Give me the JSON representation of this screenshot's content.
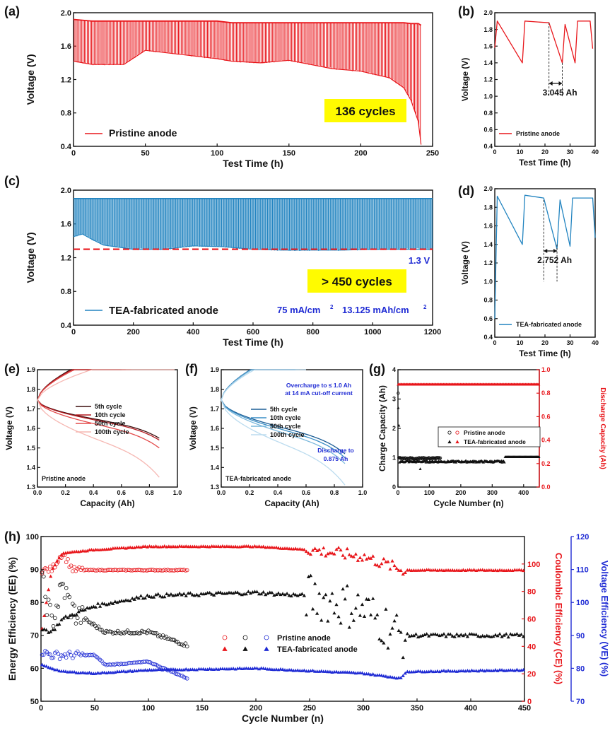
{
  "chart_data": [
    {
      "panel": "(a)",
      "type": "line",
      "xlabel": "Test Time (h)",
      "ylabel": "Voltage (V)",
      "xlim": [
        0,
        250
      ],
      "ylim": [
        0.4,
        2.0
      ],
      "xticks": [
        "0",
        "50",
        "100",
        "150",
        "200",
        "250"
      ],
      "yticks": [
        "0.4",
        "0.8",
        "1.2",
        "1.6",
        "2.0"
      ],
      "legend": "Pristine anode",
      "highlight_text": "136 cycles",
      "series": [
        {
          "name": "Pristine anode",
          "color": "#e8161b",
          "x": [
            0,
            13,
            25,
            35,
            50,
            100,
            110,
            130,
            150,
            180,
            200,
            220,
            230,
            235,
            240,
            242
          ],
          "y_charge_top": [
            1.92,
            1.9,
            1.9,
            1.9,
            1.9,
            1.9,
            1.88,
            1.88,
            1.88,
            1.88,
            1.88,
            1.88,
            1.88,
            1.87,
            1.87,
            1.85
          ],
          "y_discharge_end": [
            1.42,
            1.38,
            1.38,
            1.38,
            1.55,
            1.45,
            1.42,
            1.4,
            1.43,
            1.33,
            1.3,
            1.22,
            1.1,
            0.95,
            0.7,
            0.42
          ]
        }
      ]
    },
    {
      "panel": "(b)",
      "type": "line",
      "xlabel": "Test Time (h)",
      "ylabel": "Voltage (V)",
      "xlim": [
        0,
        40
      ],
      "ylim": [
        0.4,
        2.0
      ],
      "xticks": [
        "0",
        "10",
        "20",
        "30",
        "40"
      ],
      "yticks": [
        "0.4",
        "0.6",
        "0.8",
        "1.0",
        "1.2",
        "1.4",
        "1.6",
        "1.8",
        "2.0"
      ],
      "legend": "Pristine anode",
      "annotation": "3.045 Ah",
      "series": [
        {
          "name": "Pristine anode",
          "color": "#e8161b",
          "x": [
            0,
            1,
            11,
            12,
            21.6,
            26.9,
            28,
            32,
            33,
            38,
            39
          ],
          "y": [
            1.58,
            1.9,
            1.4,
            1.9,
            1.88,
            1.4,
            1.86,
            1.4,
            1.9,
            1.9,
            1.57
          ]
        }
      ]
    },
    {
      "panel": "(c)",
      "type": "line",
      "xlabel": "Test Time (h)",
      "ylabel": "Voltage (V)",
      "xlim": [
        0,
        1200
      ],
      "ylim": [
        0.4,
        2.0
      ],
      "xticks": [
        "0",
        "200",
        "400",
        "600",
        "800",
        "1000",
        "1200"
      ],
      "yticks": [
        "0.4",
        "0.8",
        "1.2",
        "1.6",
        "2.0"
      ],
      "legend": "TEA-fabricated anode",
      "highlight_text": "> 450 cycles",
      "reference_line": {
        "y": 1.3,
        "label": "1.3 V"
      },
      "conditions": [
        "75 mA/cm",
        "13.125 mAh/cm"
      ],
      "series": [
        {
          "name": "TEA-fabricated anode",
          "color": "#2284c0",
          "x": [
            0,
            30,
            60,
            100,
            200,
            300,
            400,
            500,
            600,
            700,
            800,
            900,
            1000,
            1100,
            1200
          ],
          "y_charge_top": [
            1.9,
            1.9,
            1.9,
            1.9,
            1.9,
            1.9,
            1.9,
            1.9,
            1.9,
            1.9,
            1.9,
            1.9,
            1.9,
            1.9,
            1.9
          ],
          "y_discharge_end": [
            1.45,
            1.48,
            1.42,
            1.35,
            1.3,
            1.3,
            1.34,
            1.33,
            1.3,
            1.29,
            1.29,
            1.29,
            1.3,
            1.3,
            1.3
          ]
        }
      ]
    },
    {
      "panel": "(d)",
      "type": "line",
      "xlabel": "Test Time (h)",
      "ylabel": "Voltage (V)",
      "xlim": [
        0,
        40
      ],
      "ylim": [
        0.4,
        2.0
      ],
      "xticks": [
        "0",
        "10",
        "20",
        "30",
        "40"
      ],
      "yticks": [
        "0.4",
        "0.6",
        "0.8",
        "1.0",
        "1.2",
        "1.4",
        "1.6",
        "1.8",
        "2.0"
      ],
      "legend": "TEA-fabricated anode",
      "annotation": "2.752 Ah",
      "series": [
        {
          "name": "TEA-fabricated anode",
          "color": "#2284c0",
          "x": [
            0,
            1,
            11,
            12,
            19.5,
            24.8,
            26,
            30,
            31,
            39,
            40
          ],
          "y": [
            0.6,
            1.92,
            1.4,
            1.93,
            1.9,
            1.35,
            1.88,
            1.38,
            1.9,
            1.9,
            1.47
          ]
        }
      ]
    },
    {
      "panel": "(e)",
      "type": "line",
      "xlabel": "Capacity (Ah)",
      "ylabel": "Voltage (V)",
      "xlim": [
        0.0,
        1.0
      ],
      "ylim": [
        1.3,
        1.9
      ],
      "xticks": [
        "0.0",
        "0.2",
        "0.4",
        "0.6",
        "0.8",
        "1.0"
      ],
      "yticks": [
        "1.3",
        "1.4",
        "1.5",
        "1.6",
        "1.7",
        "1.8",
        "1.9"
      ],
      "corner_label": "Pristine anode",
      "series": [
        {
          "name": "5th cycle",
          "color": "#3b0d0d",
          "charge_end": 0.6,
          "discharge_end_x": 0.87,
          "discharge_end_y": 1.55
        },
        {
          "name": "10th cycle",
          "color": "#b3191f",
          "charge_end": 0.63,
          "discharge_end_x": 0.87,
          "discharge_end_y": 1.54
        },
        {
          "name": "50th cycle",
          "color": "#e34a4a",
          "charge_end": 0.67,
          "discharge_end_x": 0.87,
          "discharge_end_y": 1.5
        },
        {
          "name": "100th cycle",
          "color": "#f6b7b2",
          "charge_end": 0.98,
          "discharge_end_x": 0.87,
          "discharge_end_y": 1.35
        }
      ]
    },
    {
      "panel": "(f)",
      "type": "line",
      "xlabel": "Capacity (Ah)",
      "ylabel": "Voltage (V)",
      "xlim": [
        0.0,
        1.0
      ],
      "ylim": [
        1.3,
        1.9
      ],
      "xticks": [
        "0.0",
        "0.2",
        "0.4",
        "0.6",
        "0.8",
        "1.0"
      ],
      "yticks": [
        "1.3",
        "1.4",
        "1.5",
        "1.6",
        "1.7",
        "1.8",
        "1.9"
      ],
      "corner_label": "TEA-fabricated anode",
      "notes": [
        "Overcharge to ≤ 1.0 Ah",
        "at 14 mA cut-off current",
        "Discharge to",
        "0.875 Ah"
      ],
      "series": [
        {
          "name": "5th cycle",
          "color": "#1c5e96",
          "charge_end": 0.52,
          "discharge_end_x": 0.875,
          "discharge_end_y": 1.47
        },
        {
          "name": "10th cycle",
          "color": "#3a8ec5",
          "charge_end": 0.53,
          "discharge_end_x": 0.875,
          "discharge_end_y": 1.45
        },
        {
          "name": "50th cycle",
          "color": "#79b7dc",
          "charge_end": 0.55,
          "discharge_end_x": 0.875,
          "discharge_end_y": 1.42
        },
        {
          "name": "100th cycle",
          "color": "#bcdcef",
          "charge_end": 0.6,
          "discharge_end_x": 0.875,
          "discharge_end_y": 1.31
        }
      ]
    },
    {
      "panel": "(g)",
      "type": "scatter",
      "xlabel": "Cycle Number (n)",
      "ylabel": "Charge Capacity (Ah)",
      "y2label": "Discharge Capacity (Ah)",
      "xlim": [
        0,
        450
      ],
      "ylim": [
        0,
        4
      ],
      "y2lim": [
        0.0,
        1.0
      ],
      "xticks": [
        "0",
        "100",
        "200",
        "300",
        "400"
      ],
      "yticks": [
        "0",
        "1",
        "2",
        "3",
        "4"
      ],
      "y2ticks": [
        "0.0",
        "0.2",
        "0.4",
        "0.6",
        "0.8",
        "1.0"
      ],
      "legend": [
        "Pristine anode",
        "TEA-fabricated anode"
      ],
      "series": [
        {
          "name": "Pristine anode (charge)",
          "marker": "circle-open",
          "color": "#111111",
          "x": [
            1,
            2,
            3,
            5,
            10,
            30,
            60,
            100,
            136
          ],
          "y": [
            1.7,
            3.3,
            1.0,
            1.0,
            0.95,
            0.98,
            1.0,
            1.0,
            1.0
          ]
        },
        {
          "name": "Pristine anode (discharge)",
          "marker": "circle-open",
          "color": "#e8161b",
          "x": [
            1,
            136
          ],
          "y": [
            0.875,
            0.875
          ]
        },
        {
          "name": "TEA-fabricated anode (charge)",
          "marker": "triangle",
          "color": "#111111",
          "x": [
            1,
            3,
            5,
            10,
            30,
            70,
            100,
            200,
            250,
            300,
            330,
            340,
            400,
            450
          ],
          "y": [
            3.1,
            3.0,
            2.7,
            0.95,
            0.88,
            0.62,
            0.88,
            0.87,
            0.9,
            0.88,
            0.9,
            1.03,
            1.03,
            1.03
          ]
        },
        {
          "name": "TEA-fabricated anode (discharge)",
          "marker": "triangle",
          "color": "#e8161b",
          "x": [
            1,
            450
          ],
          "y": [
            0.875,
            0.875
          ]
        }
      ]
    },
    {
      "panel": "(h)",
      "type": "scatter",
      "xlabel": "Cycle Number (n)",
      "ylabel": "Energy Efficiency (EE) (%)",
      "y2label": "Coulombic Efficiency (CE) (%)",
      "y3label": "Voltage Efficiency (VE) (%)",
      "xlim": [
        0,
        450
      ],
      "ylim": [
        50,
        100
      ],
      "y2lim": [
        0,
        120
      ],
      "y3lim": [
        70,
        120
      ],
      "xticks": [
        "0",
        "50",
        "100",
        "150",
        "200",
        "250",
        "300",
        "350",
        "400",
        "450"
      ],
      "yticks": [
        "50",
        "60",
        "70",
        "80",
        "90",
        "100"
      ],
      "y2ticks": [
        "0",
        "20",
        "40",
        "60",
        "80",
        "100"
      ],
      "y3ticks": [
        "70",
        "80",
        "90",
        "100",
        "110",
        "120"
      ],
      "legend": [
        "Pristine anode",
        "TEA-fabricated anode"
      ],
      "series": [
        {
          "name": "Pristine anode CE",
          "marker": "circle-open",
          "color": "#e8161b",
          "x": [
            1,
            10,
            20,
            30,
            60,
            100,
            136
          ],
          "y": [
            89.8,
            90,
            95,
            89.8,
            89.8,
            89.8,
            89.8
          ]
        },
        {
          "name": "Pristine anode EE",
          "marker": "circle-open",
          "color": "#111111",
          "x": [
            1,
            10,
            20,
            30,
            50,
            60,
            100,
            136
          ],
          "y": [
            86,
            74,
            85,
            77,
            73,
            71,
            71,
            67
          ]
        },
        {
          "name": "Pristine anode VE",
          "marker": "circle-open",
          "color": "#1f2bd4",
          "x": [
            1,
            10,
            50,
            60,
            100,
            136
          ],
          "y": [
            85,
            84,
            84,
            81,
            82,
            77
          ]
        },
        {
          "name": "TEA-fabricated anode CE",
          "marker": "triangle",
          "color": "#e8161b",
          "x": [
            1,
            10,
            20,
            50,
            100,
            200,
            250,
            300,
            335,
            340,
            450
          ],
          "y": [
            72,
            90,
            95,
            96,
            97,
            97,
            96,
            94,
            90,
            89.8,
            89.8
          ]
        },
        {
          "name": "TEA-fabricated anode EE",
          "marker": "triangle",
          "color": "#111111",
          "x": [
            1,
            10,
            20,
            50,
            100,
            200,
            250,
            300,
            335,
            340,
            450
          ],
          "y": [
            72,
            71,
            75,
            79,
            82,
            83,
            82,
            78,
            70,
            70,
            70
          ]
        },
        {
          "name": "TEA-fabricated anode VE",
          "marker": "triangle",
          "color": "#1f2bd4",
          "x": [
            1,
            10,
            20,
            50,
            100,
            200,
            300,
            335,
            340,
            450
          ],
          "y": [
            81,
            80,
            79,
            78.5,
            79.5,
            80,
            78.5,
            77,
            79,
            79.5
          ]
        }
      ]
    }
  ]
}
